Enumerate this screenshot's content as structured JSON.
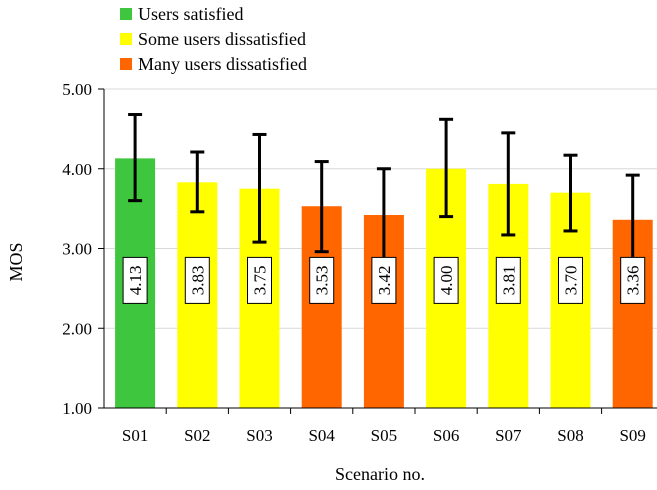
{
  "chart_data": {
    "type": "bar",
    "xlabel": "Scenario no.",
    "ylabel": "MOS",
    "ylim": [
      1.0,
      5.0
    ],
    "yticks": [
      "1.00",
      "2.00",
      "3.00",
      "4.00",
      "5.00"
    ],
    "grid": "horizontal",
    "legend_position": "top-left",
    "legend": [
      {
        "label": "Users satisfied",
        "color": "#3ec63e"
      },
      {
        "label": "Some users dissatisfied",
        "color": "#ffff00"
      },
      {
        "label": "Many users dissatisfied",
        "color": "#ff6600"
      }
    ],
    "categories": [
      "S01",
      "S02",
      "S03",
      "S04",
      "S05",
      "S06",
      "S07",
      "S08",
      "S09"
    ],
    "values": [
      4.13,
      3.83,
      3.75,
      3.53,
      3.42,
      4.0,
      3.81,
      3.7,
      3.36
    ],
    "value_labels": [
      "4.13",
      "3.83",
      "3.75",
      "3.53",
      "3.42",
      "4.00",
      "3.81",
      "3.70",
      "3.36"
    ],
    "error_low": [
      3.6,
      3.46,
      3.08,
      2.96,
      2.84,
      3.4,
      3.17,
      3.22,
      2.8
    ],
    "error_high": [
      4.68,
      4.21,
      4.43,
      4.09,
      4.0,
      4.62,
      4.45,
      4.17,
      3.92
    ],
    "bar_class": [
      0,
      1,
      1,
      2,
      2,
      1,
      1,
      1,
      2
    ]
  }
}
